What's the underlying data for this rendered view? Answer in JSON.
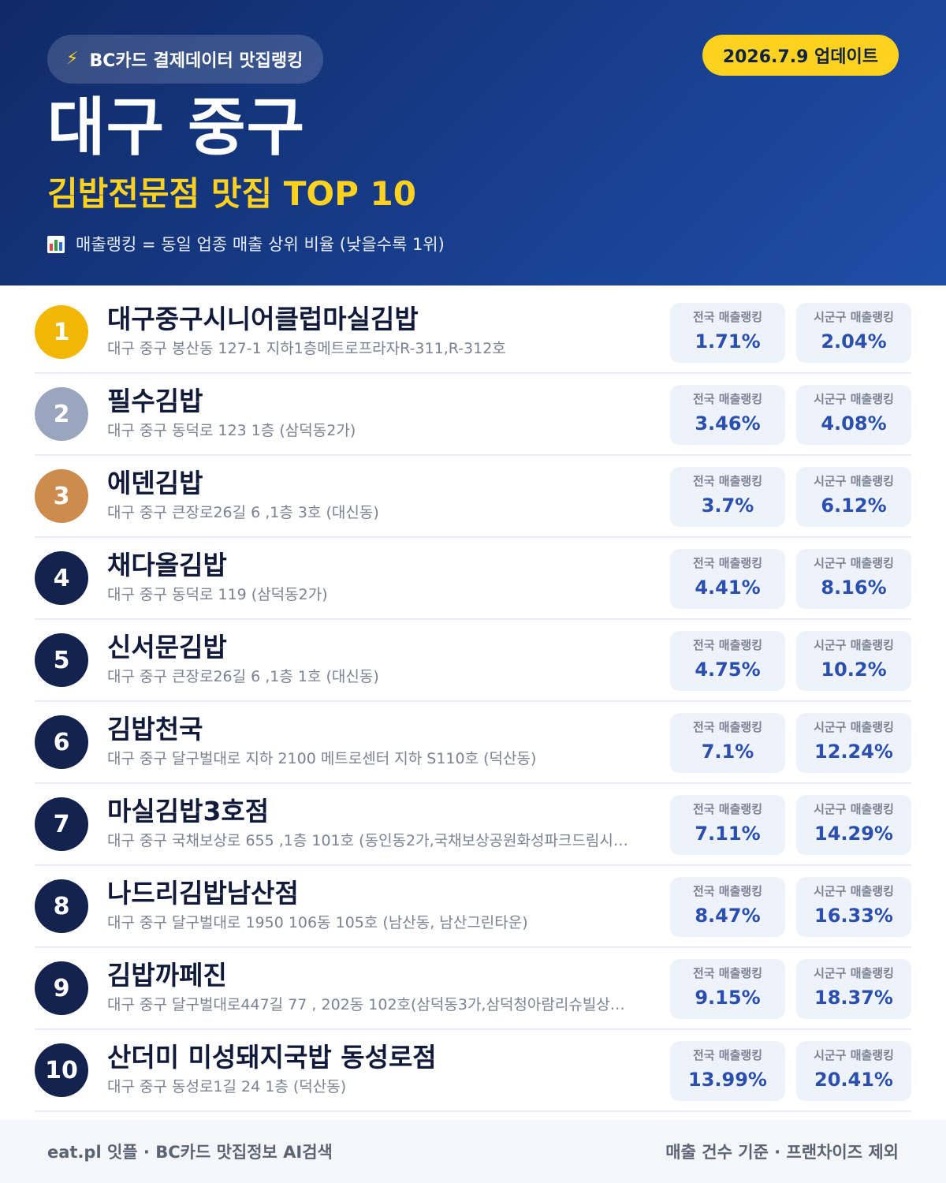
{
  "header": {
    "pill_label": "BC카드 결제데이터 맛집랭킹",
    "update_label": "2026.7.9 업데이트",
    "region": "대구 중구",
    "subtitle": "김밥전문점 맛집 TOP 10",
    "note": "매출랭킹 = 동일 업종 매출 상위 비율 (낮을수록 1위)"
  },
  "labels": {
    "national": "전국 매출랭킹",
    "local": "시군구 매출랭킹"
  },
  "restaurants": [
    {
      "rank": "1",
      "name": "대구중구시니어클럽마실김밥",
      "address": "대구 중구 봉산동 127-1 지하1층메트로프라자R-311,R-312호",
      "national": "1.71%",
      "local": "2.04%"
    },
    {
      "rank": "2",
      "name": "필수김밥",
      "address": "대구 중구 동덕로 123 1층 (삼덕동2가)",
      "national": "3.46%",
      "local": "4.08%"
    },
    {
      "rank": "3",
      "name": "에덴김밥",
      "address": "대구 중구 큰장로26길 6 ,1층 3호 (대신동)",
      "national": "3.7%",
      "local": "6.12%"
    },
    {
      "rank": "4",
      "name": "채다올김밥",
      "address": "대구 중구 동덕로 119 (삼덕동2가)",
      "national": "4.41%",
      "local": "8.16%"
    },
    {
      "rank": "5",
      "name": "신서문김밥",
      "address": "대구 중구 큰장로26길 6 ,1층 1호 (대신동)",
      "national": "4.75%",
      "local": "10.2%"
    },
    {
      "rank": "6",
      "name": "김밥천국",
      "address": "대구 중구 달구벌대로 지하 2100 메트로센터 지하 S110호 (덕산동)",
      "national": "7.1%",
      "local": "12.24%"
    },
    {
      "rank": "7",
      "name": "마실김밥3호점",
      "address": "대구 중구 국채보상로 655 ,1층 101호 (동인동2가,국채보상공원화성파크드림시…",
      "national": "7.11%",
      "local": "14.29%"
    },
    {
      "rank": "8",
      "name": "나드리김밥남산점",
      "address": "대구 중구 달구벌대로 1950 106동 105호 (남산동, 남산그린타운)",
      "national": "8.47%",
      "local": "16.33%"
    },
    {
      "rank": "9",
      "name": "김밥까페진",
      "address": "대구 중구 달구벌대로447길 77 , 202동 102호(삼덕동3가,삼덕청아람리슈빌상…",
      "national": "9.15%",
      "local": "18.37%"
    },
    {
      "rank": "10",
      "name": "산더미 미성돼지국밥 동성로점",
      "address": "대구 중구 동성로1길 24 1층 (덕산동)",
      "national": "13.99%",
      "local": "20.41%"
    }
  ],
  "footer": {
    "left": "eat.pl 잇플 · BC카드 맛집정보 AI검색",
    "right": "매출 건수 기준 · 프랜차이즈 제외"
  },
  "colors": {
    "header_dark": "#0f2a66",
    "header_light": "#1f4ea8",
    "accent_yellow": "#ffd21f",
    "rank_gold": "#f2b705",
    "rank_silver": "#9aa6bd",
    "rank_bronze": "#cd8b4e",
    "rank_default": "#14224f",
    "stat_value": "#2a4fb0"
  },
  "icons": {
    "pill": "lightning-bolt-icon",
    "note": "bar-chart-icon"
  }
}
